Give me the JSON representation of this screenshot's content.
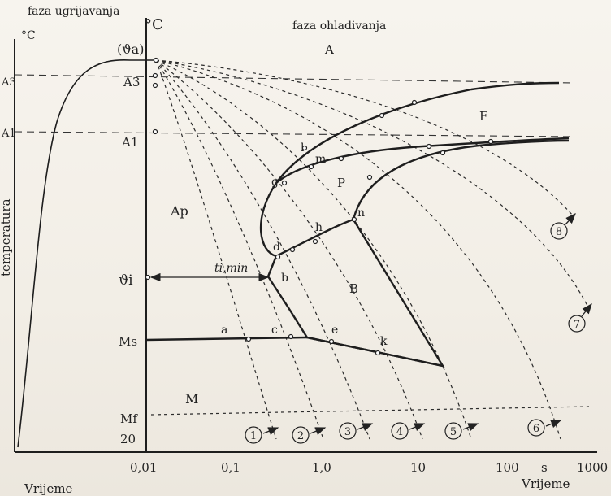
{
  "header": {
    "heating_phase": "faza ugrijavanja",
    "cooling_phase": "faza ohladivanja"
  },
  "axes": {
    "unit_left": "°C",
    "unit_mid": "°C",
    "y_label": "temperatura",
    "x_label_left": "Vrijeme",
    "x_label_right": "Vrijeme",
    "x_unit": "s",
    "x_ticks": [
      "0,01",
      "0,1",
      "1,0",
      "10",
      "100",
      "1000"
    ],
    "y_ticks_left": [
      "A3",
      "A1"
    ],
    "y_ticks_mid": [
      "(ϑa)",
      "A3",
      "A1",
      "ϑi",
      "Ms",
      "Mf",
      "20"
    ]
  },
  "regions": [
    "A",
    "F",
    "P",
    "B",
    "Ap",
    "M"
  ],
  "point_labels": [
    "l",
    "m",
    "g",
    "n",
    "h",
    "d",
    "b",
    "a",
    "c",
    "e",
    "k"
  ],
  "annotation": "ti,min",
  "curve_numbers": [
    "1",
    "2",
    "3",
    "4",
    "5",
    "6",
    "7",
    "8"
  ]
}
